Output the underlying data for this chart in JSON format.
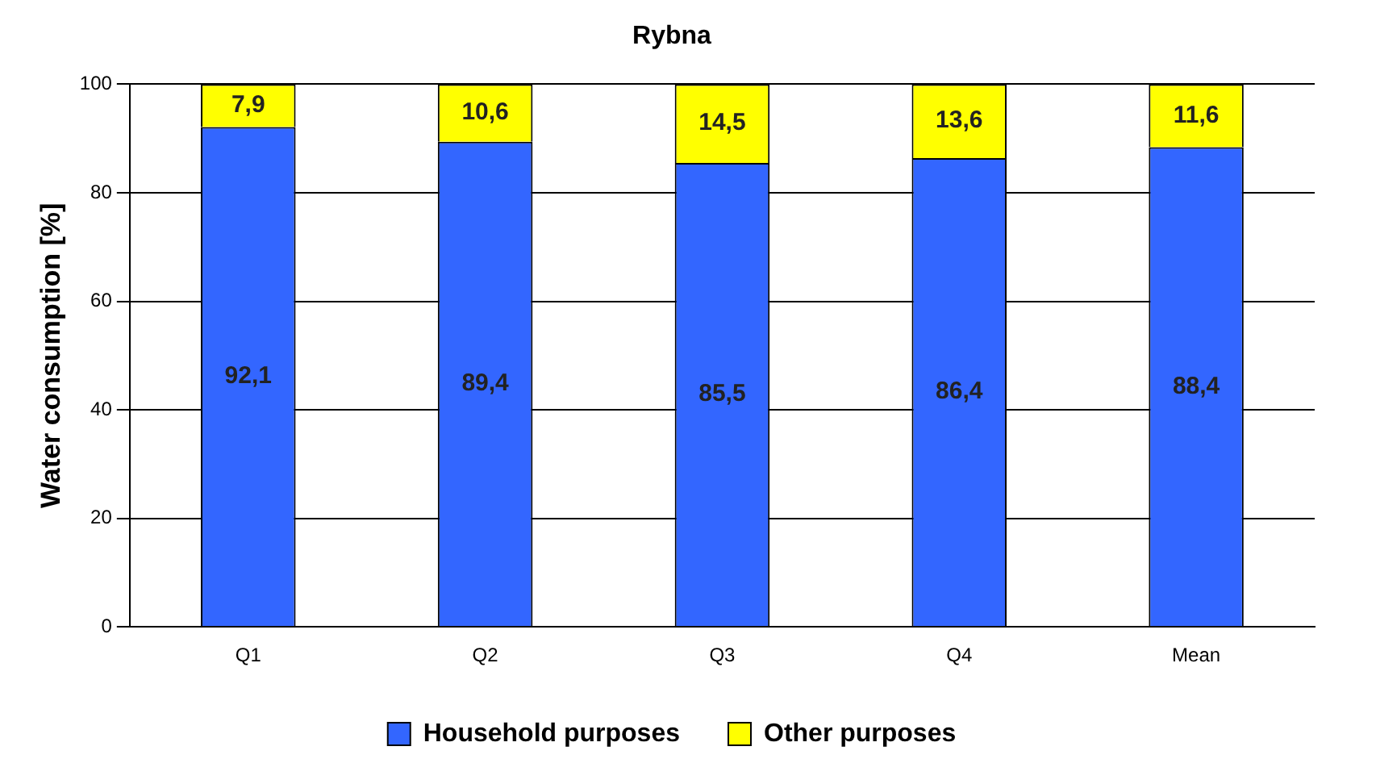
{
  "chart_data": {
    "type": "bar",
    "title": "Rybna",
    "ylabel": "Water consumption [%]",
    "categories": [
      "Q1",
      "Q2",
      "Q3",
      "Q4",
      "Mean"
    ],
    "stacked": true,
    "series": [
      {
        "name": "Household purposes",
        "color": "#3366ff",
        "values": [
          92.1,
          89.4,
          85.5,
          86.4,
          88.4
        ],
        "value_labels": [
          "92,1",
          "89,4",
          "85,5",
          "86,4",
          "88,4"
        ]
      },
      {
        "name": "Other purposes",
        "color": "#ffff00",
        "values": [
          7.9,
          10.6,
          14.5,
          13.6,
          11.6
        ],
        "value_labels": [
          "7,9",
          "10,6",
          "14,5",
          "13,6",
          "11,6"
        ]
      }
    ],
    "ylim": [
      0,
      100
    ],
    "yticks": [
      0,
      20,
      40,
      60,
      80,
      100
    ],
    "grid": "y",
    "legend": "bottom"
  }
}
